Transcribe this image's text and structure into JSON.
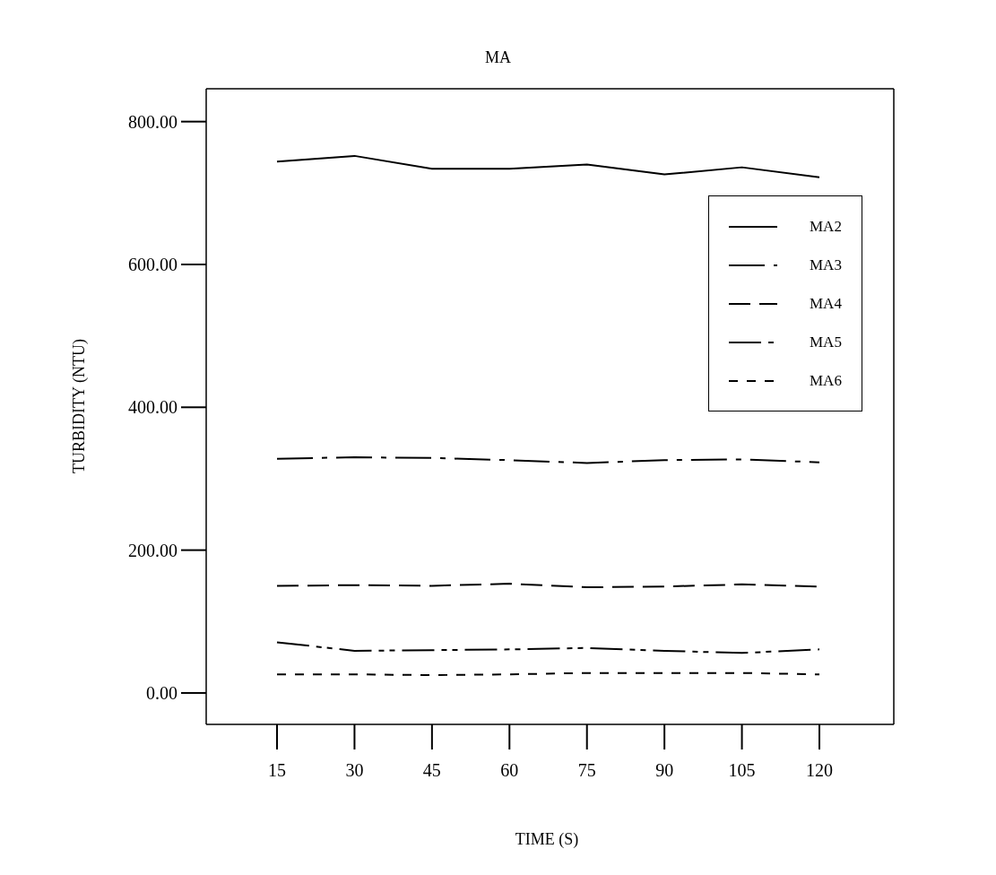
{
  "chart_data": {
    "type": "line",
    "title": "MA",
    "xlabel": "TIME (S)",
    "ylabel": "TURBIDITY (NTU)",
    "categories": [
      "15",
      "30",
      "45",
      "60",
      "75",
      "90",
      "105",
      "120"
    ],
    "ylim": [
      -44,
      846
    ],
    "yticks": [
      {
        "value": 0,
        "label": "0.00"
      },
      {
        "value": 200,
        "label": "200.00"
      },
      {
        "value": 400,
        "label": "400.00"
      },
      {
        "value": 600,
        "label": "600.00"
      },
      {
        "value": 800,
        "label": "800.00"
      }
    ],
    "grid": false,
    "legend": "top right",
    "marker": "none",
    "series": [
      {
        "name": "MA2",
        "color": "#000000",
        "line_style": "solid",
        "values": [
          744,
          752,
          734,
          734,
          740,
          726,
          736,
          722
        ]
      },
      {
        "name": "MA3",
        "color": "#000000",
        "line_style": "dashdot",
        "values": [
          328,
          330,
          329,
          326,
          322,
          326,
          327,
          323
        ]
      },
      {
        "name": "MA4",
        "color": "#000000",
        "line_style": "dashed",
        "values": [
          150,
          151,
          150,
          153,
          148,
          149,
          152,
          149
        ]
      },
      {
        "name": "MA5",
        "color": "#000000",
        "line_style": "dashdotdot",
        "values": [
          71,
          59,
          60,
          61,
          63,
          59,
          56,
          61
        ]
      },
      {
        "name": "MA6",
        "color": "#000000",
        "line_style": "dotted",
        "values": [
          26,
          26,
          25,
          26,
          28,
          28,
          28,
          26
        ]
      }
    ]
  }
}
